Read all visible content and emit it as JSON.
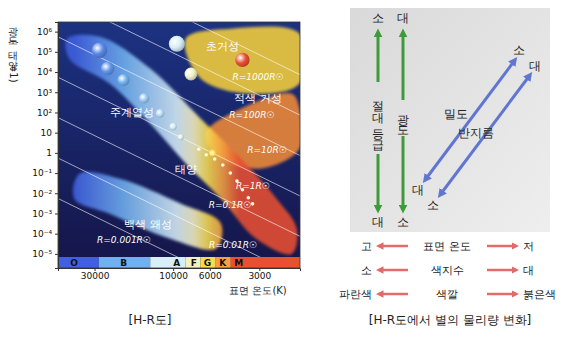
{
  "chart_data": {
    "type": "scatter",
    "caption": "[H-R도]",
    "x_label": "표면 온도(K)",
    "y_label": "광도(태양=1)",
    "log": true,
    "grid": false,
    "xlim": [
      50000,
      1700
    ],
    "xticks": [
      30000,
      10000,
      6000,
      3000
    ],
    "ylim": [
      2e-06,
      3000000
    ],
    "yticks": [
      {
        "value": 1000000,
        "label": "10⁶"
      },
      {
        "value": 100000,
        "label": "10⁵"
      },
      {
        "value": 10000,
        "label": "10⁴"
      },
      {
        "value": 1000,
        "label": "10³"
      },
      {
        "value": 100,
        "label": "10²"
      },
      10,
      1,
      {
        "value": 0.1,
        "label": "10⁻¹"
      },
      {
        "value": 0.01,
        "label": "10⁻²"
      },
      {
        "value": 0.001,
        "label": "10⁻³"
      },
      {
        "value": 0.0001,
        "label": "10⁻⁴"
      },
      {
        "value": 1e-05,
        "label": "10⁻⁵"
      }
    ],
    "regions": [
      {
        "label": "초거성",
        "color": "#f4cf3c",
        "temperature": [
          8400,
          4460,
          1710,
          1710,
          3360,
          6800
        ],
        "luminosity": [
          450000,
          1400000,
          790000,
          2700,
          850,
          4700
        ]
      },
      {
        "label": "적색 거성",
        "color": "#f08a38",
        "temperature": [
          6340,
          3860,
          1910,
          1710,
          1710,
          2920,
          5130
        ],
        "luminosity": [
          8.9,
          155,
          850,
          155,
          1.6,
          0.17,
          0.51
        ]
      },
      {
        "label": "주계열성",
        "temperature": [
          44000,
          27900,
          13800,
          6800,
          3860,
          2360,
          1780,
          1910,
          3130,
          5130,
          8400,
          13800,
          24300,
          42600
        ],
        "luminosity": [
          450000,
          560000,
          15000,
          49,
          0.51,
          0.0054,
          0.00018,
          1e-05,
          5.6e-05,
          0.0054,
          0.3,
          28,
          2700,
          46000
        ]
      },
      {
        "label": "백색 왜성",
        "temperature": [
          37000,
          21100,
          9040,
          5130,
          5500,
          10400,
          24300,
          39800
        ],
        "luminosity": [
          0.093,
          0.052,
          0.0031,
          0.00032,
          1.8e-05,
          5.6e-05,
          0.00098,
          0.0054
        ]
      }
    ],
    "radius_lines": [
      {
        "radius": 1000,
        "label": "R=1000R☉"
      },
      {
        "radius": 100,
        "label": "R=100R☉"
      },
      {
        "radius": 10,
        "label": "R=10R☉"
      },
      {
        "radius": 1,
        "label": "R=1R☉"
      },
      {
        "radius": 0.1,
        "label": "R=0.1R☉"
      },
      {
        "radius": 0.01,
        "label": "R=0.01R☉"
      },
      {
        "radius": 0.001,
        "label": "R=0.001R☉"
      }
    ],
    "sun": {
      "label": "태양",
      "temperature": 5800,
      "luminosity": 1
    },
    "stars": {
      "temperature": [
        28000,
        25000,
        20000,
        15000,
        12000,
        10000,
        9000,
        9500,
        7800,
        3800
      ],
      "luminosity": [
        120000,
        15000,
        4000,
        500,
        90,
        20,
        6,
        250000,
        8000,
        40000
      ]
    },
    "main_sequence_points": {
      "temperature": [
        7000,
        6300,
        5600,
        5000,
        4500,
        4100,
        3800,
        3500,
        3300
      ],
      "luminosity": [
        1.5,
        0.8,
        0.5,
        0.25,
        0.1,
        0.04,
        0.015,
        0.006,
        0.003
      ]
    },
    "spectral_classes": {
      "labels": [
        "O",
        "B",
        "A",
        "F",
        "G",
        "K",
        "M"
      ],
      "temperature": [
        40000,
        20000,
        9500,
        7500,
        6200,
        5000,
        4000
      ],
      "colors": [
        "#4060e0",
        "#70b0f0",
        "#d8eef8",
        "#f4f0c0",
        "#f8dc50",
        "#f4a040",
        "#e85030"
      ]
    }
  },
  "diagram": {
    "caption": "[H-R도에서 별의 물리량 변화]",
    "vertical_scales": [
      {
        "label": "절대 등급",
        "top": "소",
        "bottom": "대"
      },
      {
        "label": "광도",
        "top": "대",
        "bottom": "소"
      }
    ],
    "diagonal_scales": [
      {
        "label": "밀도",
        "top": "소",
        "bottom": "대"
      },
      {
        "label": "반지름",
        "top": "대",
        "bottom": "소"
      }
    ],
    "horizontal_scales": [
      {
        "label": "표면 온도",
        "left": "고",
        "right": "저"
      },
      {
        "label": "색지수",
        "left": "소",
        "right": "대"
      },
      {
        "label": "색깔",
        "left": "파란색",
        "right": "붉은색"
      }
    ]
  }
}
